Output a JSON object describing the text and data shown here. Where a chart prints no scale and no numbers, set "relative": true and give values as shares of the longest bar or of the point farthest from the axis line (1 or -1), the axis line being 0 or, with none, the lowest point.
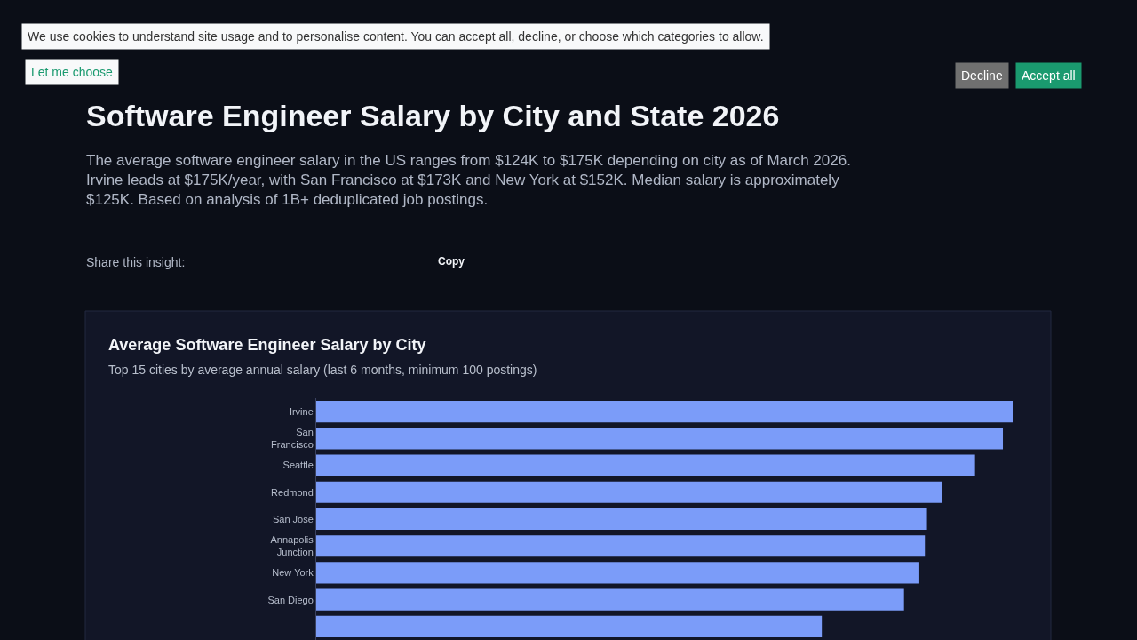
{
  "chart_data": {
    "type": "bar",
    "orientation": "horizontal",
    "relative": true,
    "title": "Average Software Engineer Salary by City",
    "subtitle": "Top 15 cities by average annual salary (last 6 months, minimum 100 postings)",
    "categories": [
      "Irvine",
      "San Francisco",
      "Seattle",
      "Redmond",
      "San Jose",
      "Annapolis Junction",
      "New York",
      "San Diego",
      null
    ],
    "values": [
      1,
      0.986,
      0.946,
      0.898,
      0.877,
      0.874,
      0.866,
      0.844,
      0.726
    ],
    "color": "#7b9cf9",
    "annotations": [
      "Software Engineer Salary by City and State 2026",
      "The average software engineer salary in the US ranges from $124K to $175K depending on city as of March 2026. Irvine leads at $175K/year, with San Francisco at $173K and New York at $152K. Median salary is approximately $125K. Based on analysis of 1B+ deduplicated job postings.",
      "Share this insight:",
      "We use cookies to understand site usage and to personalise content. You can accept all, decline, or choose which categories to allow.",
      "Let me choose",
      "Decline",
      "Accept all",
      "Copy"
    ]
  }
}
